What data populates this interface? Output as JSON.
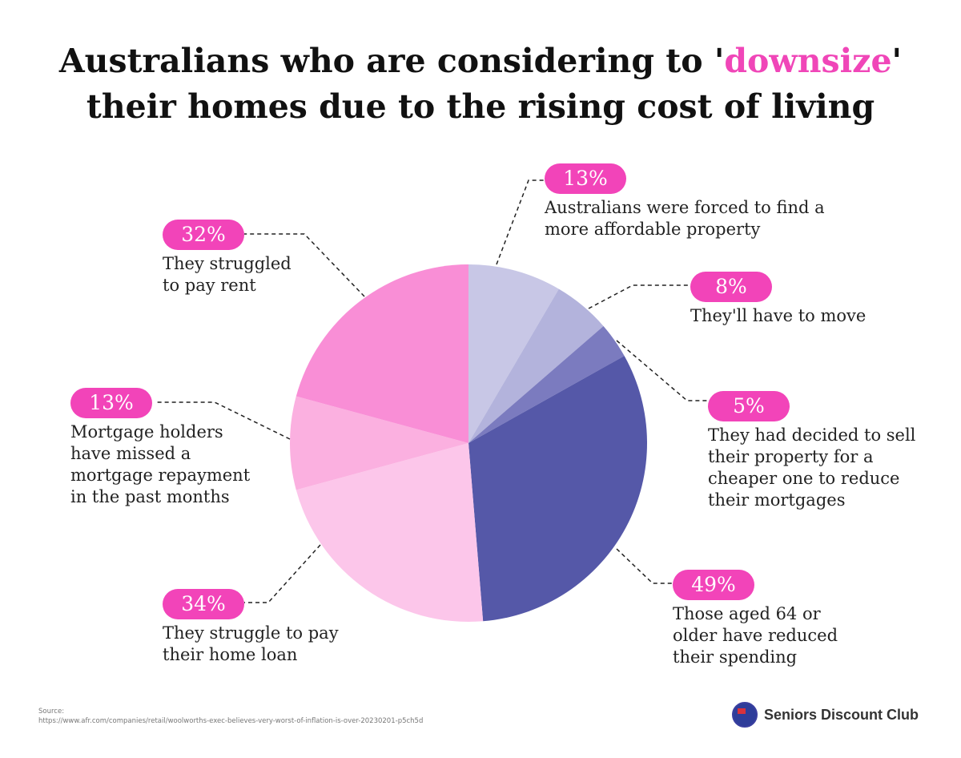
{
  "title": {
    "line1_pre": "Australians who are considering to '",
    "highlight": "downsize",
    "line1_post": "'",
    "line2": "their homes due to the rising cost of living"
  },
  "chart_data": {
    "type": "pie",
    "title": "Australians who are considering to 'downsize' their homes due to the rising cost of living",
    "slices": [
      {
        "value": 13,
        "label": "13%",
        "text": "Australians were forced to find a more affordable property",
        "color": "#c8c7e6"
      },
      {
        "value": 8,
        "label": "8%",
        "text": "They'll have to move",
        "color": "#b3b3dc"
      },
      {
        "value": 5,
        "label": "5%",
        "text": "They had decided to sell their property for a cheaper one to reduce their mortgages",
        "color": "#7b7bbf"
      },
      {
        "value": 49,
        "label": "49%",
        "text": "Those aged 64 or older have reduced their spending",
        "color": "#5558a8"
      },
      {
        "value": 34,
        "label": "34%",
        "text": "They struggle to pay their home loan",
        "color": "#fcc6ea"
      },
      {
        "value": 13,
        "label": "13%",
        "text": "Mortgage holders have missed a mortgage repayment in the past months",
        "color": "#fbb0e0"
      },
      {
        "value": 32,
        "label": "32%",
        "text": "They struggled to pay rent",
        "color": "#f98ed6"
      }
    ]
  },
  "source": {
    "label": "Source:",
    "url": "https://www.afr.com/companies/retail/woolworths-exec-believes-very-worst-of-inflation-is-over-20230201-p5ch5d"
  },
  "brand": {
    "name": "Seniors Discount Club"
  }
}
